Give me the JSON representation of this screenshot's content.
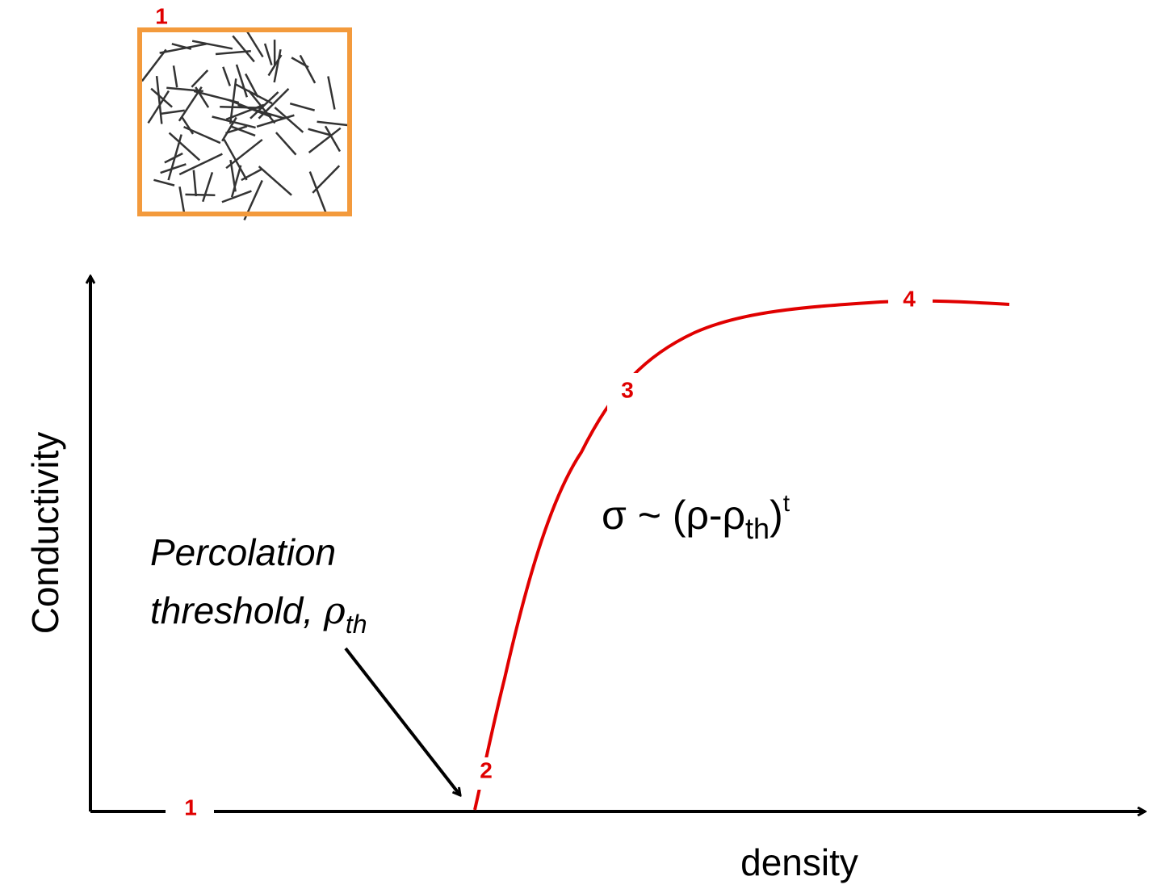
{
  "inset": {
    "label": "1"
  },
  "axes": {
    "y_label": "Conductivity",
    "x_label": "density"
  },
  "curve_labels": [
    "1",
    "2",
    "3",
    "4"
  ],
  "annotation": {
    "line1": "Percolation",
    "line2": "threshold, ",
    "symbol": "ρ",
    "subscript": "th"
  },
  "formula": {
    "main": "σ ~ (ρ-ρ",
    "subscript": "th",
    "close": ")",
    "superscript": "t"
  }
}
